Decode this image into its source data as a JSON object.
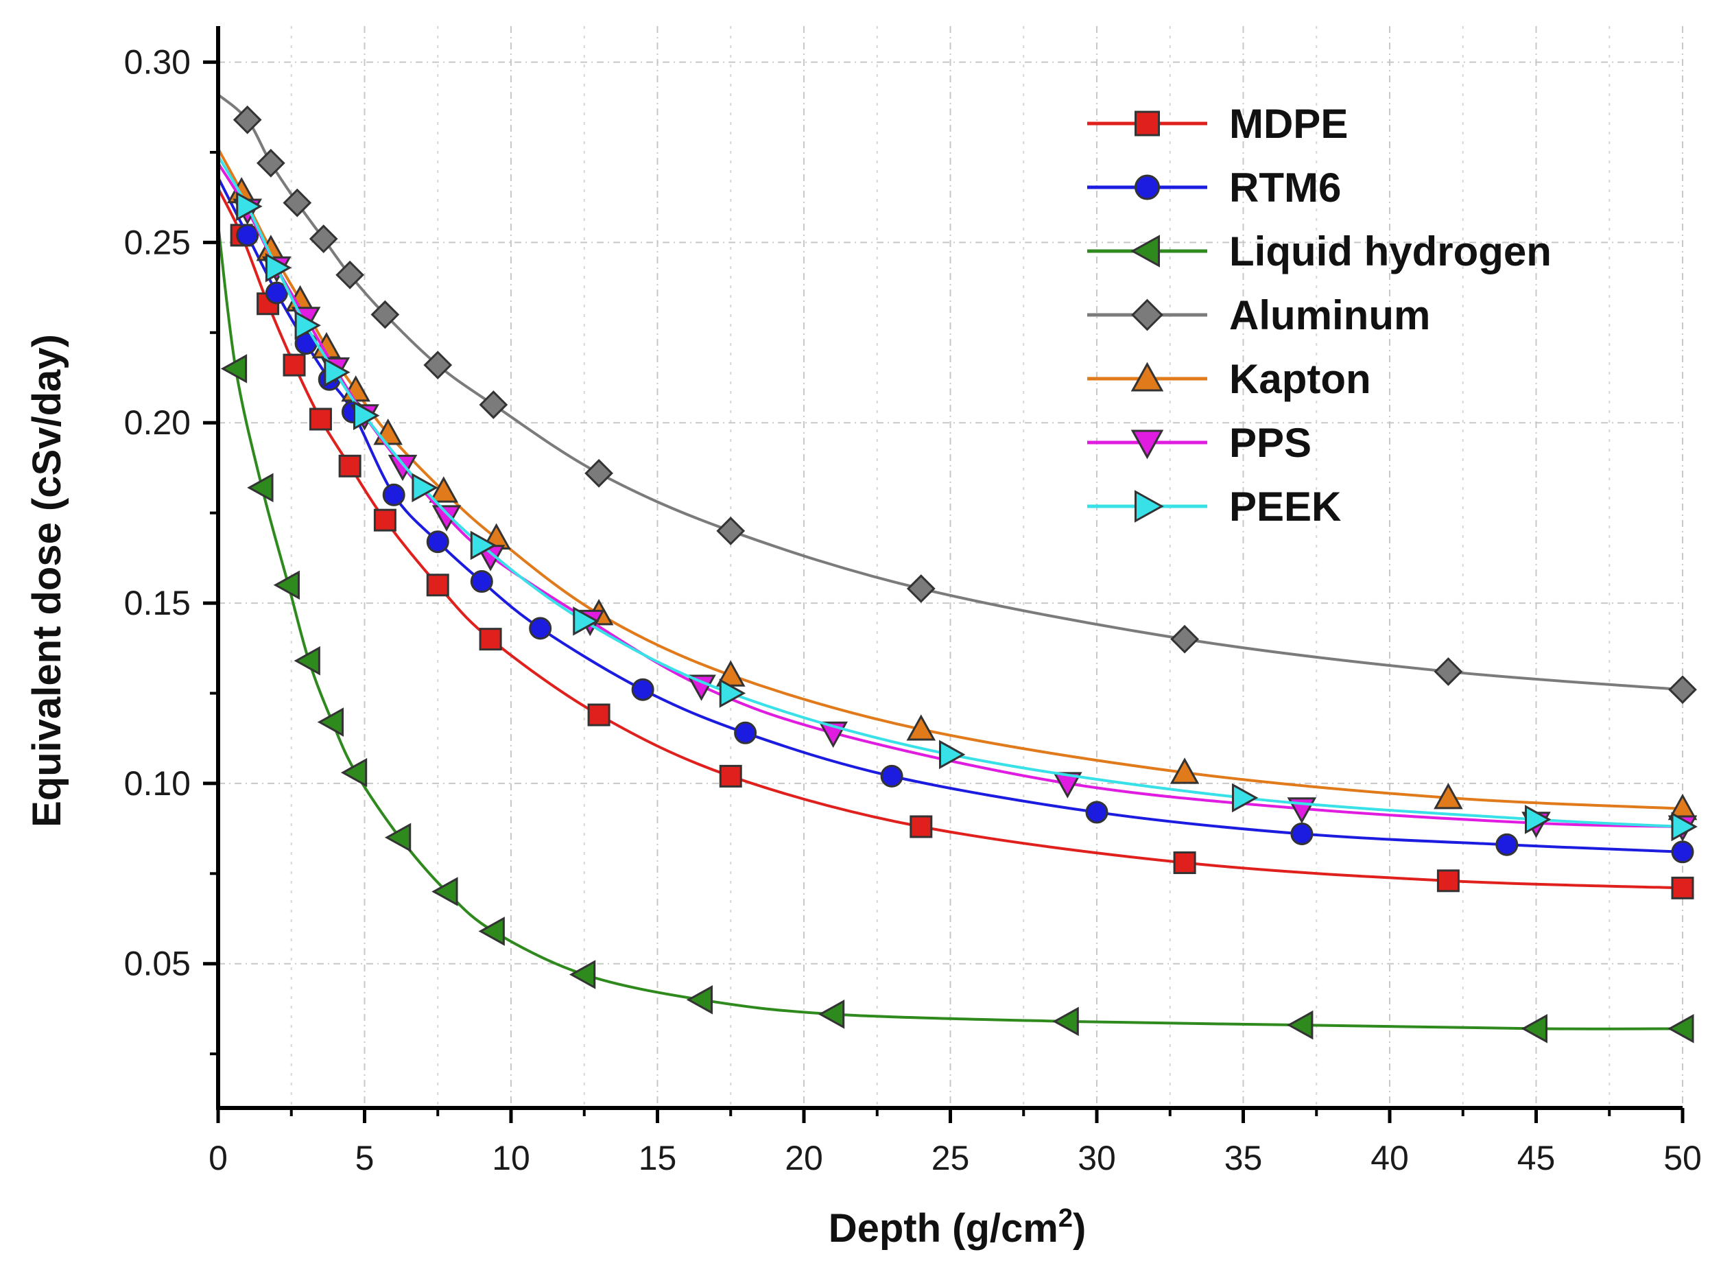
{
  "chart_data": {
    "type": "line",
    "xlabel": "Depth (g/cm",
    "xlabel_sup": "2",
    "xlabel_close": ")",
    "ylabel": "Equivalent dose (cSv/day)",
    "xlim": [
      0,
      50
    ],
    "ylim": [
      0.01,
      0.31
    ],
    "xticks": [
      0,
      5,
      10,
      15,
      20,
      25,
      30,
      35,
      40,
      45,
      50
    ],
    "xtick_labels": [
      "0",
      "5",
      "10",
      "15",
      "20",
      "25",
      "30",
      "35",
      "40",
      "45",
      "50"
    ],
    "yticks": [
      0.05,
      0.1,
      0.15,
      0.2,
      0.25,
      0.3
    ],
    "ytick_labels": [
      "0.05",
      "0.10",
      "0.15",
      "0.20",
      "0.25",
      "0.30"
    ],
    "grid": "dashed",
    "legend_position": "top-right",
    "series": [
      {
        "name": "MDPE",
        "color": "#e0201c",
        "marker": "square",
        "x": [
          0,
          0.8,
          1.7,
          2.6,
          3.5,
          4.5,
          5.7,
          7.5,
          9.3,
          13,
          17.5,
          24,
          33,
          42,
          50
        ],
        "y": [
          0.265,
          0.252,
          0.233,
          0.216,
          0.201,
          0.188,
          0.173,
          0.155,
          0.14,
          0.119,
          0.102,
          0.088,
          0.078,
          0.073,
          0.071
        ]
      },
      {
        "name": "RTM6",
        "color": "#1c1ce0",
        "marker": "circle",
        "x": [
          0,
          1.0,
          2.0,
          3.0,
          3.8,
          4.6,
          6.0,
          7.5,
          9.0,
          11,
          14.5,
          18,
          23,
          30,
          37,
          44,
          50
        ],
        "y": [
          0.268,
          0.252,
          0.236,
          0.222,
          0.212,
          0.203,
          0.18,
          0.167,
          0.156,
          0.143,
          0.126,
          0.114,
          0.102,
          0.092,
          0.086,
          0.083,
          0.081
        ]
      },
      {
        "name": "Liquid hydrogen",
        "color": "#2f8a1e",
        "marker": "triangle-left",
        "x": [
          0,
          0.6,
          1.5,
          2.4,
          3.1,
          3.9,
          4.7,
          6.2,
          7.8,
          9.4,
          12.5,
          16.5,
          21,
          29,
          37,
          45,
          50
        ],
        "y": [
          0.255,
          0.215,
          0.182,
          0.155,
          0.134,
          0.117,
          0.103,
          0.085,
          0.07,
          0.059,
          0.047,
          0.04,
          0.036,
          0.034,
          0.033,
          0.032,
          0.032
        ]
      },
      {
        "name": "Aluminum",
        "color": "#7b7b7b",
        "marker": "diamond",
        "x": [
          0,
          1.0,
          1.8,
          2.7,
          3.6,
          4.5,
          5.7,
          7.5,
          9.4,
          13,
          17.5,
          24,
          33,
          42,
          50
        ],
        "y": [
          0.291,
          0.284,
          0.272,
          0.261,
          0.251,
          0.241,
          0.23,
          0.216,
          0.205,
          0.186,
          0.17,
          0.154,
          0.14,
          0.131,
          0.126
        ]
      },
      {
        "name": "Kapton",
        "color": "#e07a1a",
        "marker": "triangle-up",
        "x": [
          0,
          0.8,
          1.8,
          2.8,
          3.7,
          4.7,
          5.8,
          7.7,
          9.5,
          13,
          17.5,
          24,
          33,
          42,
          50
        ],
        "y": [
          0.276,
          0.264,
          0.248,
          0.234,
          0.221,
          0.209,
          0.197,
          0.181,
          0.168,
          0.147,
          0.13,
          0.115,
          0.103,
          0.096,
          0.093
        ]
      },
      {
        "name": "PPS",
        "color": "#e01ce0",
        "marker": "triangle-down",
        "x": [
          0,
          1.0,
          2.0,
          3.0,
          4.0,
          5.0,
          6.3,
          7.8,
          9.3,
          12.7,
          16.5,
          21,
          29,
          37,
          45,
          50
        ],
        "y": [
          0.272,
          0.259,
          0.243,
          0.229,
          0.215,
          0.202,
          0.188,
          0.174,
          0.163,
          0.145,
          0.127,
          0.114,
          0.1,
          0.093,
          0.089,
          0.088
        ]
      },
      {
        "name": "PEEK",
        "color": "#38e0e8",
        "marker": "triangle-right",
        "x": [
          0,
          1.0,
          2.0,
          3.0,
          4.0,
          5.0,
          7.0,
          9.0,
          12.5,
          17.5,
          25,
          35,
          45,
          50
        ],
        "y": [
          0.274,
          0.26,
          0.243,
          0.227,
          0.214,
          0.202,
          0.182,
          0.166,
          0.145,
          0.125,
          0.108,
          0.096,
          0.09,
          0.088
        ]
      }
    ]
  }
}
